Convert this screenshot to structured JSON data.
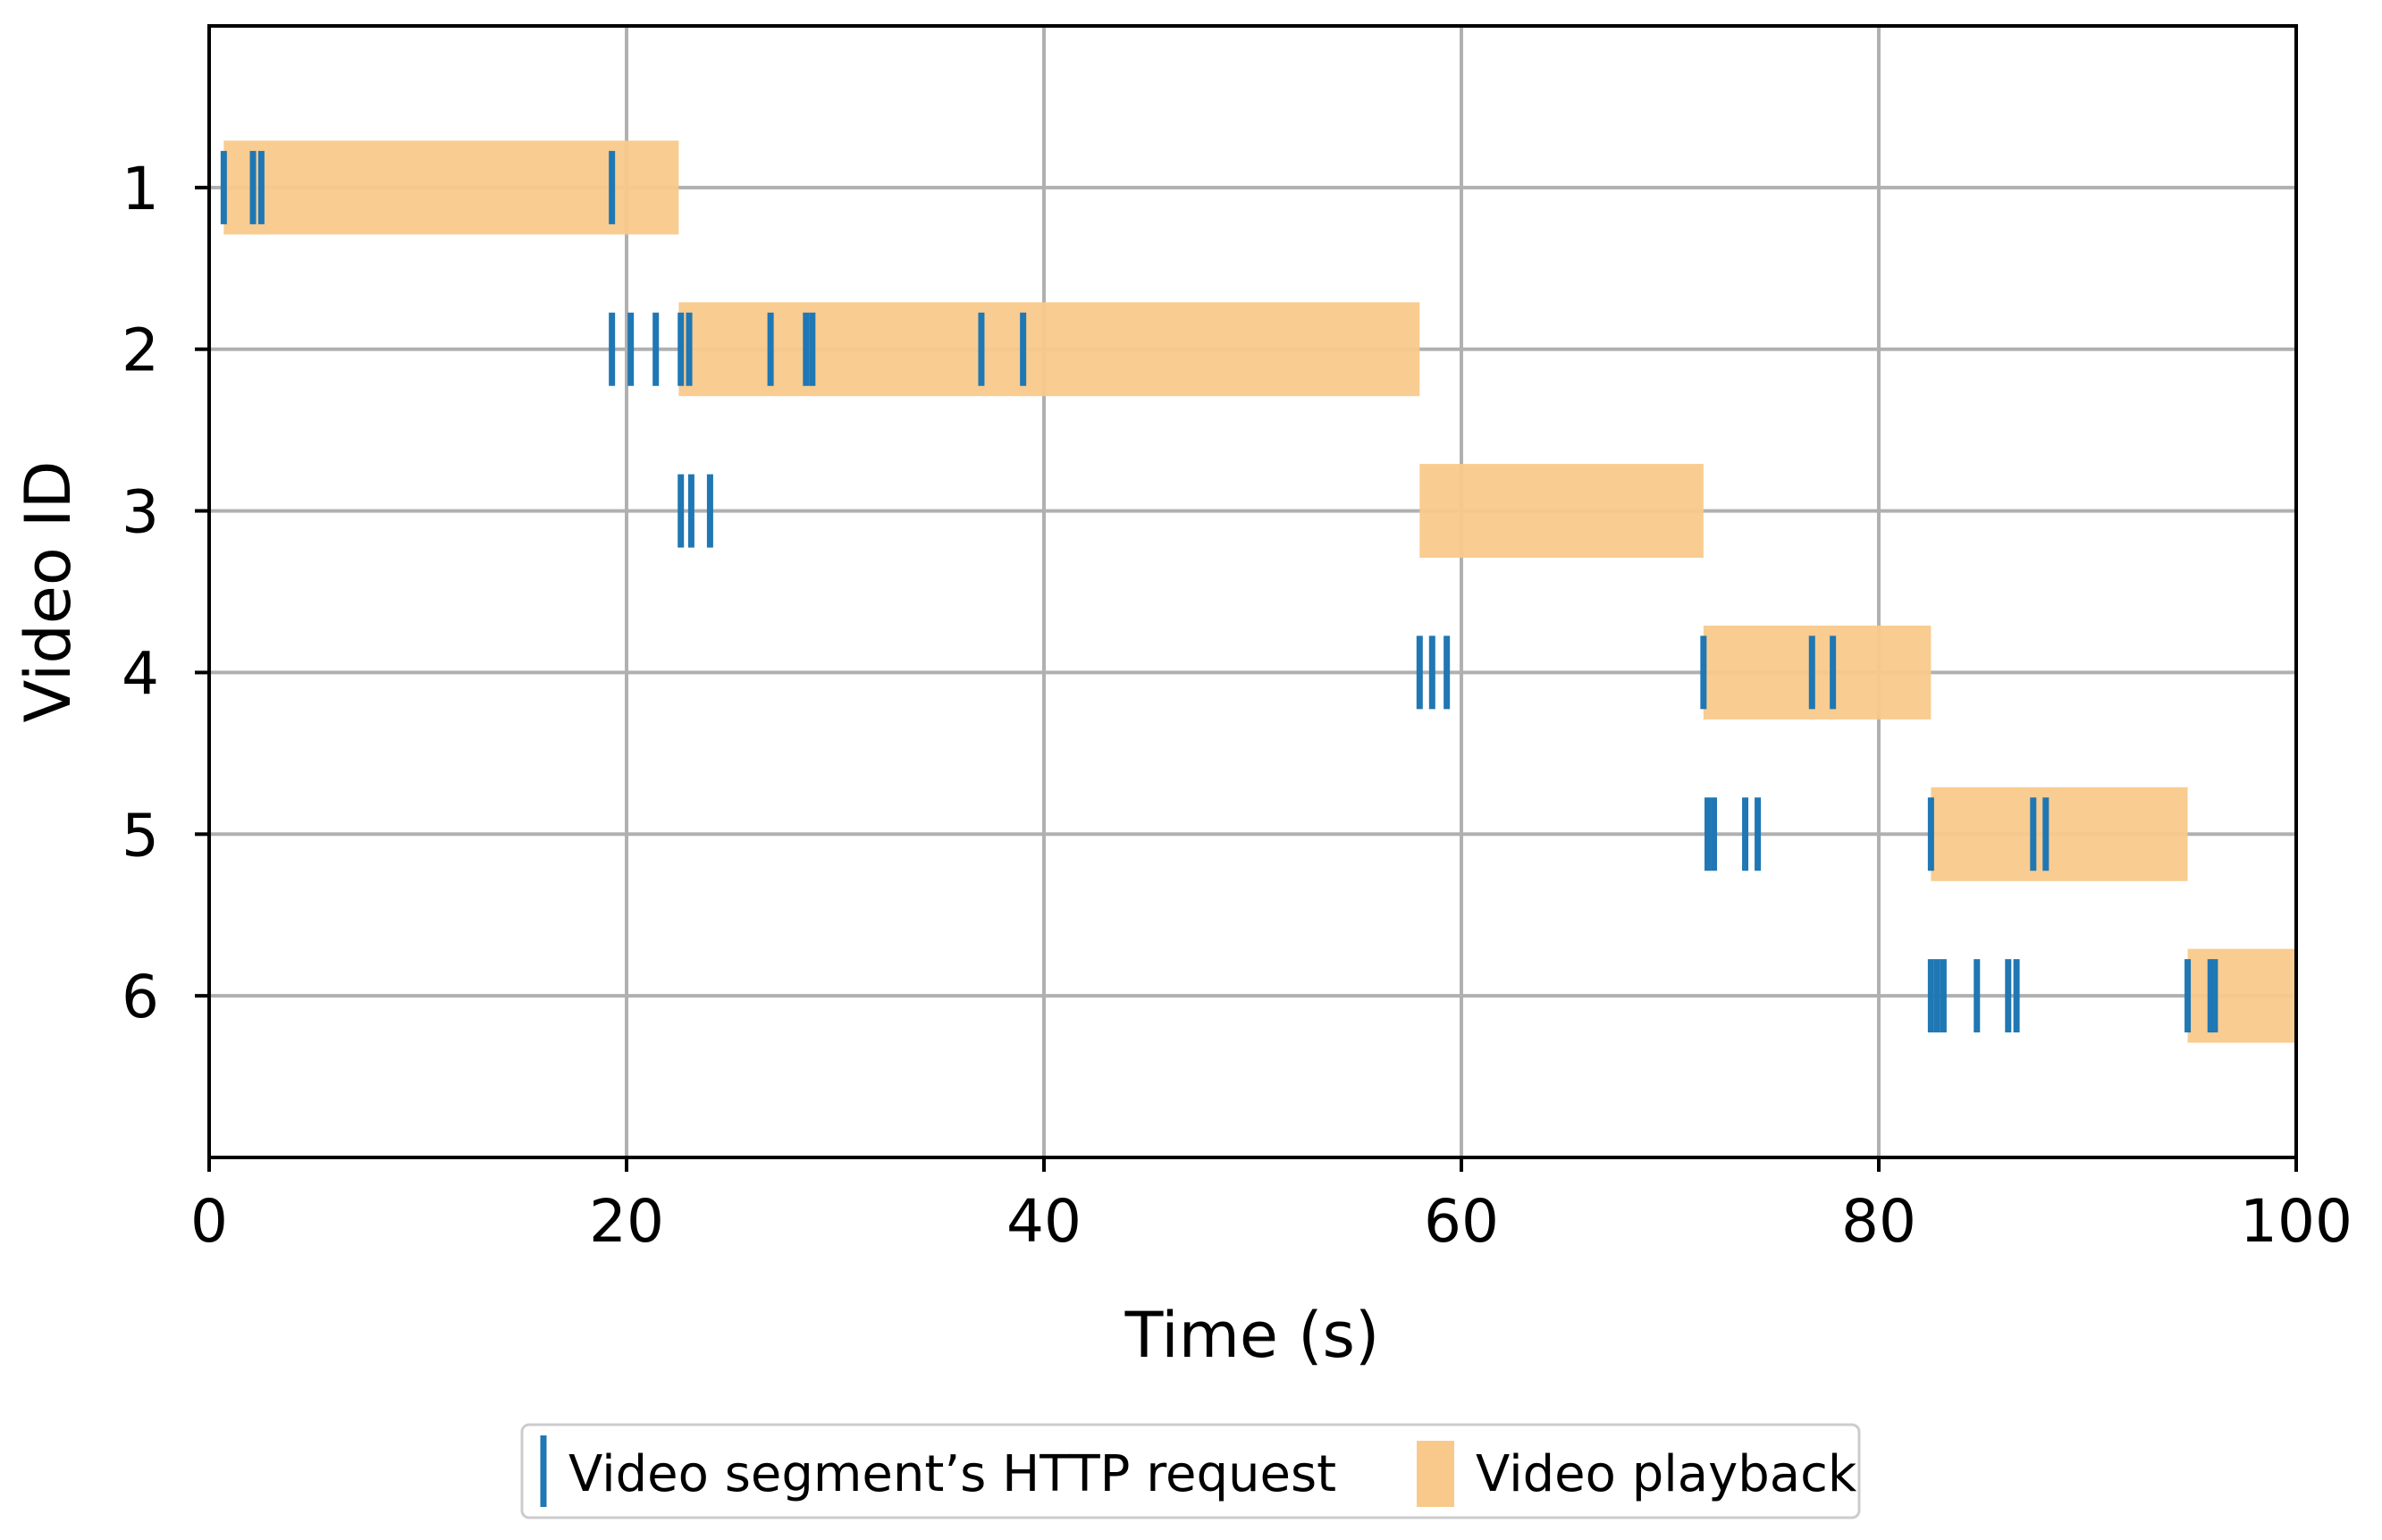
{
  "chart_data": {
    "type": "timeline",
    "xlabel": "Time (s)",
    "ylabel": "Video ID",
    "xlim": [
      0,
      100
    ],
    "ylim": [
      7,
      0
    ],
    "x_ticks": [
      0,
      20,
      40,
      60,
      80,
      100
    ],
    "y_ticks": [
      1,
      2,
      3,
      4,
      5,
      6
    ],
    "grid": true,
    "colors": {
      "request": "#1f77b4",
      "playback": "#f9c98b",
      "grid": "#b0b0b0"
    },
    "legend": {
      "position": "bottom-center",
      "entries": [
        {
          "label": "Video segment’s HTTP request",
          "kind": "request"
        },
        {
          "label": "Video playback",
          "kind": "playback"
        }
      ]
    },
    "series": [
      {
        "name": "Video playback",
        "kind": "playback",
        "intervals": [
          {
            "video": 1,
            "start": 0.7,
            "end": 22.5
          },
          {
            "video": 2,
            "start": 22.5,
            "end": 58.0
          },
          {
            "video": 3,
            "start": 58.0,
            "end": 71.6
          },
          {
            "video": 4,
            "start": 71.6,
            "end": 82.5
          },
          {
            "video": 5,
            "start": 82.5,
            "end": 94.8
          },
          {
            "video": 6,
            "start": 94.8,
            "end": 100.0
          }
        ]
      },
      {
        "name": "Video segment’s HTTP request",
        "kind": "request",
        "requests": [
          {
            "video": 1,
            "times": [
              0.7,
              2.1,
              2.5,
              19.3
            ]
          },
          {
            "video": 2,
            "times": [
              19.3,
              20.2,
              21.4,
              22.6,
              23.0,
              26.9,
              28.6,
              28.9,
              37.0,
              39.0
            ]
          },
          {
            "video": 3,
            "times": [
              22.6,
              23.1,
              24.0
            ]
          },
          {
            "video": 4,
            "times": [
              58.0,
              58.6,
              59.3,
              71.6,
              76.8,
              77.8
            ]
          },
          {
            "video": 5,
            "times": [
              71.8,
              72.1,
              73.6,
              74.2,
              82.5,
              87.4,
              88.0
            ]
          },
          {
            "video": 6,
            "times": [
              82.5,
              82.8,
              83.1,
              84.7,
              86.2,
              86.6,
              94.8,
              95.9,
              96.1
            ]
          }
        ]
      }
    ]
  }
}
